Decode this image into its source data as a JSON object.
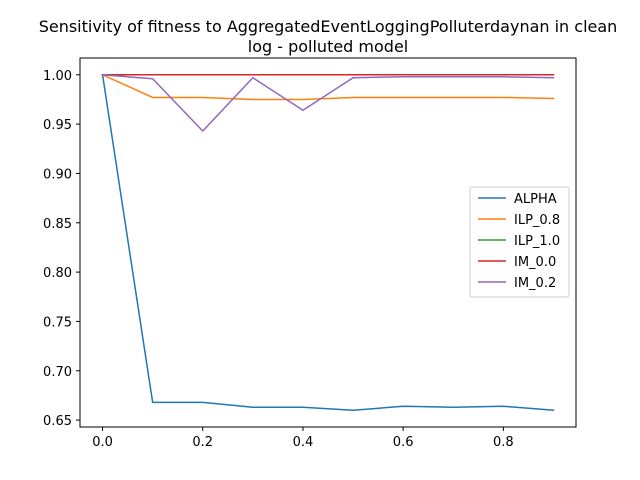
{
  "chart_data": {
    "type": "line",
    "title_lines": [
      "Sensitivity of fitness to AggregatedEventLoggingPolluterdaynan in clean",
      "log - polluted model"
    ],
    "xlabel": "",
    "ylabel": "",
    "xlim": [
      -0.045,
      0.945
    ],
    "ylim": [
      0.643,
      1.017
    ],
    "xticks": [
      0.0,
      0.2,
      0.4,
      0.6,
      0.8
    ],
    "xtick_labels": [
      "0.0",
      "0.2",
      "0.4",
      "0.6",
      "0.8"
    ],
    "yticks": [
      0.65,
      0.7,
      0.75,
      0.8,
      0.85,
      0.9,
      0.95,
      1.0
    ],
    "ytick_labels": [
      "0.65",
      "0.70",
      "0.75",
      "0.80",
      "0.85",
      "0.90",
      "0.95",
      "1.00"
    ],
    "grid": false,
    "legend_position": "center-right",
    "x": [
      0.0,
      0.1,
      0.2,
      0.3,
      0.4,
      0.5,
      0.6,
      0.7,
      0.8,
      0.9
    ],
    "series": [
      {
        "name": "ALPHA",
        "color": "#1f77b4",
        "values": [
          1.0,
          0.668,
          0.668,
          0.663,
          0.663,
          0.66,
          0.664,
          0.663,
          0.664,
          0.66
        ]
      },
      {
        "name": "ILP_0.8",
        "color": "#ff7f0e",
        "values": [
          1.0,
          0.977,
          0.977,
          0.975,
          0.975,
          0.977,
          0.977,
          0.977,
          0.977,
          0.976
        ]
      },
      {
        "name": "ILP_1.0",
        "color": "#2ca02c",
        "values": [
          1.0,
          1.0,
          1.0,
          1.0,
          1.0,
          1.0,
          1.0,
          1.0,
          1.0,
          1.0
        ]
      },
      {
        "name": "IM_0.0",
        "color": "#d62728",
        "values": [
          1.0,
          1.0,
          1.0,
          1.0,
          1.0,
          1.0,
          1.0,
          1.0,
          1.0,
          1.0
        ]
      },
      {
        "name": "IM_0.2",
        "color": "#9467bd",
        "values": [
          1.0,
          0.996,
          0.943,
          0.997,
          0.964,
          0.997,
          0.998,
          0.998,
          0.998,
          0.997
        ]
      }
    ]
  }
}
